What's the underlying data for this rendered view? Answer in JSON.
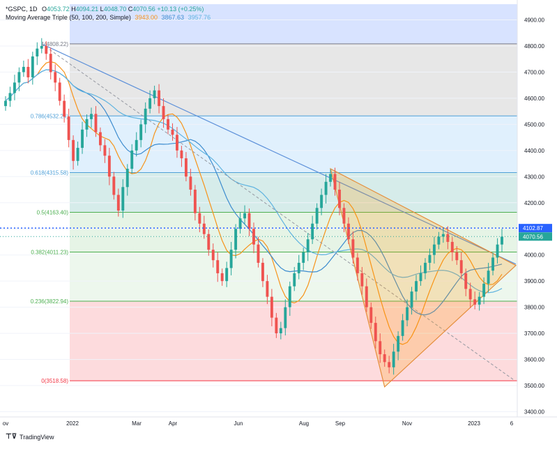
{
  "legend": {
    "symbol": "*GSPC, 1D",
    "open_label": "O",
    "open": "4053.72",
    "high_label": "H",
    "high": "4094.21",
    "low_label": "L",
    "low": "4048.70",
    "close_label": "C",
    "close": "4070.56",
    "change": "+10.13 (+0.25%)",
    "ma_title": "Moving Average Triple (50, 100, 200, Simple)",
    "ma50": "3943.00",
    "ma100": "3867.63",
    "ma200": "3957.76"
  },
  "footer": {
    "brand": "TradingView"
  },
  "colors": {
    "up": "#26a69a",
    "down": "#ef5350",
    "ma50": "#f7931a",
    "ma100": "#3d8ccf",
    "ma200": "#5fb3e0",
    "trend": "#5b8fd9",
    "price_line": "#2962ff",
    "close_badge": "#26a69a"
  },
  "chart_data": {
    "type": "candlestick",
    "y_axis": {
      "ylim": [
        3380,
        4960
      ],
      "ticks": [
        3400,
        3500,
        3600,
        3700,
        3800,
        3900,
        4000,
        4100,
        4200,
        4300,
        4400,
        4500,
        4600,
        4700,
        4800,
        4900
      ]
    },
    "x_axis": {
      "labels": [
        "ov",
        "2022",
        "Mar",
        "Apr",
        "Jun",
        "Aug",
        "Sep",
        "Nov",
        "2023",
        "6"
      ]
    },
    "price_line": {
      "value": "4102.87"
    },
    "last_price": {
      "value": "4070.56"
    },
    "fib_levels": [
      {
        "label": "1(4808.22)",
        "value": 4808.22
      },
      {
        "label": "0.786(4532.24)",
        "value": 4532.24
      },
      {
        "label": "0.618(4315.58)",
        "value": 4315.58
      },
      {
        "label": "0.5(4163.40)",
        "value": 4163.4
      },
      {
        "label": "0.382(4011.23)",
        "value": 4011.23
      },
      {
        "label": "0.236(3822.94)",
        "value": 3822.94
      },
      {
        "label": "0(3518.58)",
        "value": 3518.58
      }
    ],
    "close_series": [
      4590,
      4620,
      4660,
      4700,
      4720,
      4680,
      4760,
      4790,
      4800,
      4770,
      4700,
      4660,
      4590,
      4530,
      4440,
      4360,
      4410,
      4480,
      4520,
      4540,
      4470,
      4420,
      4380,
      4300,
      4230,
      4170,
      4260,
      4330,
      4400,
      4440,
      4500,
      4560,
      4600,
      4630,
      4570,
      4520,
      4480,
      4460,
      4400,
      4370,
      4300,
      4250,
      4160,
      4120,
      4080,
      4020,
      3980,
      3930,
      3900,
      3950,
      4020,
      4100,
      4140,
      4160,
      4100,
      4040,
      3970,
      3900,
      3840,
      3760,
      3700,
      3720,
      3800,
      3880,
      3930,
      3970,
      4010,
      4060,
      4120,
      4180,
      4230,
      4280,
      4310,
      4250,
      4180,
      4120,
      4060,
      3990,
      3930,
      3880,
      3800,
      3740,
      3670,
      3620,
      3590,
      3570,
      3630,
      3690,
      3750,
      3800,
      3860,
      3900,
      3930,
      3970,
      4000,
      4040,
      4070,
      4080,
      4050,
      4010,
      3980,
      3930,
      3870,
      3830,
      3810,
      3840,
      3890,
      3940,
      3990,
      4040,
      4070
    ]
  }
}
